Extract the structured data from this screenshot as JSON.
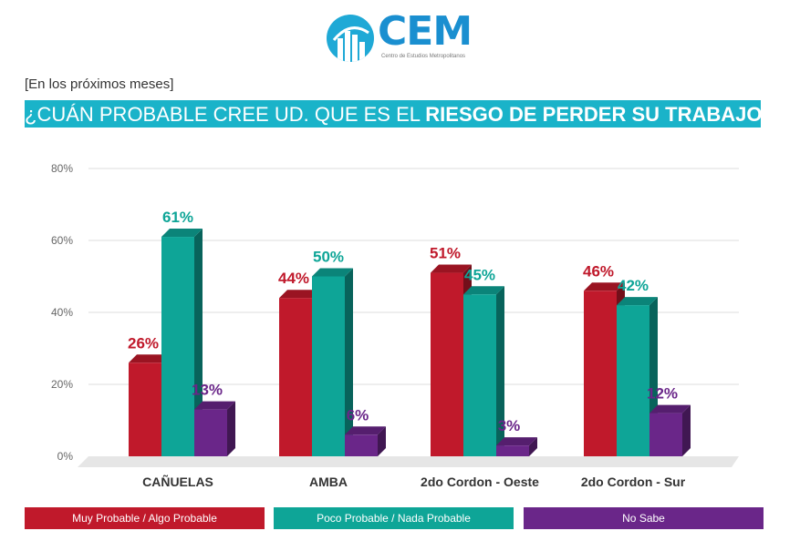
{
  "logo": {
    "name": "CEM",
    "subtitle": "Centro de Estudios Metropolitanos"
  },
  "note": "[En los próximos meses]",
  "title": {
    "part1": "¿CUÁN PROBABLE CREE UD. QUE ES EL ",
    "part2_bold": "RIESGO DE PERDER SU TRABAJO",
    "part3": "?"
  },
  "colors": {
    "red": "#c0192b",
    "teal": "#0ea597",
    "purple": "#6a2689",
    "title_bg": "#1ab3c9"
  },
  "chart_data": {
    "type": "bar",
    "categories": [
      "CAÑUELAS",
      "AMBA",
      "2do Cordon - Oeste",
      "2do Cordon - Sur"
    ],
    "series": [
      {
        "name": "Muy Probable / Algo Probable",
        "values": [
          26,
          44,
          51,
          46
        ],
        "labels": [
          "26%",
          "44%",
          "51%",
          "46%"
        ],
        "color": "#c0192b"
      },
      {
        "name": "Poco Probable / Nada Probable",
        "values": [
          61,
          50,
          45,
          42
        ],
        "labels": [
          "61%",
          "50%",
          "45%",
          "42%"
        ],
        "color": "#0ea597"
      },
      {
        "name": "No Sabe",
        "values": [
          13,
          6,
          3,
          12
        ],
        "labels": [
          "13%",
          "6%",
          "3%",
          "12%"
        ],
        "color": "#6a2689"
      }
    ],
    "yticks": [
      "0%",
      "20%",
      "40%",
      "60%",
      "80%"
    ],
    "ylim": [
      0,
      80
    ],
    "grid": true,
    "legend_position": "bottom"
  }
}
